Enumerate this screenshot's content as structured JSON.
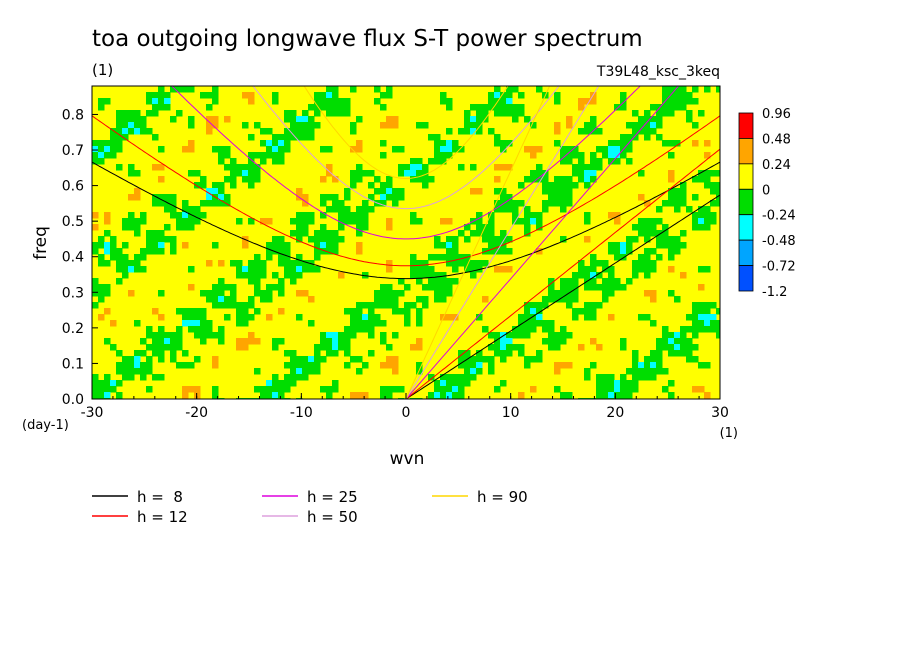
{
  "chart_data": {
    "type": "heatmap",
    "title": "toa outgoing longwave flux S-T power spectrum",
    "units": "(1)",
    "experiment": "T39L48_ksc_3keq",
    "xlabel": "wvn",
    "x_units": "(1)",
    "ylabel": "freq",
    "y_units": "(day-1)",
    "xlim": [
      -30,
      30
    ],
    "ylim": [
      0,
      0.88
    ],
    "x_ticks": [
      "-30",
      "-20",
      "-10",
      "0",
      "10",
      "20",
      "30"
    ],
    "x_tick_values": [
      -30,
      -20,
      -10,
      0,
      10,
      20,
      30
    ],
    "y_ticks": [
      "0.0",
      "0.1",
      "0.2",
      "0.3",
      "0.4",
      "0.5",
      "0.6",
      "0.7",
      "0.8"
    ],
    "y_tick_values": [
      0,
      0.1,
      0.2,
      0.3,
      0.4,
      0.5,
      0.6,
      0.7,
      0.8
    ],
    "colorbar": {
      "labels": [
        "0.96",
        "0.48",
        "0.24",
        "0",
        "-0.24",
        "-0.48",
        "-0.72",
        "-1.2"
      ],
      "colors": [
        "#ff0000",
        "#ffa500",
        "#ffff00",
        "#00dd00",
        "#00ffff",
        "#00a5ff",
        "#0050ff"
      ]
    },
    "dispersion_curves": [
      {
        "name": "h =  8",
        "h": 8,
        "color": "#000000"
      },
      {
        "name": "h = 12",
        "h": 12,
        "color": "#ff0000"
      },
      {
        "name": "h = 25",
        "h": 25,
        "color": "#dd00dd"
      },
      {
        "name": "h = 50",
        "h": 50,
        "color": "#dda0dd"
      },
      {
        "name": "h = 90",
        "h": 90,
        "color": "#ffd700"
      }
    ],
    "grid": false,
    "legend_placement": "bottom"
  }
}
